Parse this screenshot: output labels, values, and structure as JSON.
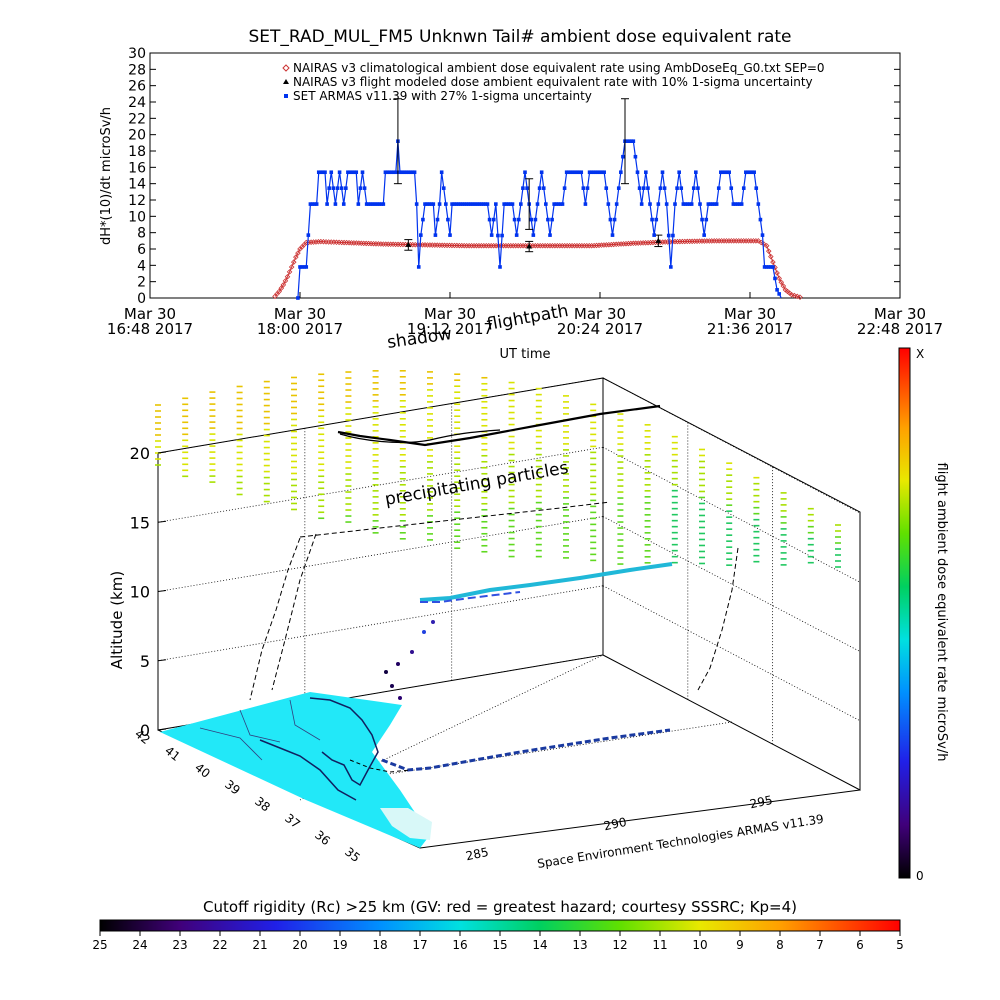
{
  "chart_data": [
    {
      "type": "line",
      "title": "SET_RAD_MUL_FM5 Unknwn Tail#  ambient dose equivalent rate",
      "ylabel": "dH*(10)/dt microSv/h",
      "xlabel": "UT time",
      "ylim": [
        0,
        30
      ],
      "yticks": [
        0,
        2,
        4,
        6,
        8,
        10,
        12,
        14,
        16,
        18,
        20,
        22,
        24,
        26,
        28,
        30
      ],
      "x_domain": [
        "2017-03-30 16:48",
        "2017-03-30 22:48"
      ],
      "xticks": [
        {
          "line1": "Mar 30",
          "line2": "16:48 2017"
        },
        {
          "line1": "Mar 30",
          "line2": "18:00 2017"
        },
        {
          "line1": "Mar 30",
          "line2": "19:12 2017"
        },
        {
          "line1": "Mar 30",
          "line2": "20:24 2017"
        },
        {
          "line1": "Mar 30",
          "line2": "21:36 2017"
        },
        {
          "line1": "Mar 30",
          "line2": "22:48 2017"
        }
      ],
      "legend_position": "top-right",
      "series": [
        {
          "name": "NAIRAS v3 climatological ambient dose equivalent rate using AmbDoseEq_G0.txt SEP=0",
          "color": "#cc3333",
          "marker": "diamond",
          "points": [
            [
              "2017-03-30 17:48",
              0.2
            ],
            [
              "2017-03-30 17:50",
              0.8
            ],
            [
              "2017-03-30 17:52",
              1.6
            ],
            [
              "2017-03-30 17:54",
              2.6
            ],
            [
              "2017-03-30 17:56",
              3.8
            ],
            [
              "2017-03-30 17:58",
              5.0
            ],
            [
              "2017-03-30 18:00",
              6.0
            ],
            [
              "2017-03-30 18:03",
              6.8
            ],
            [
              "2017-03-30 18:10",
              6.9
            ],
            [
              "2017-03-30 18:20",
              6.8
            ],
            [
              "2017-03-30 18:40",
              6.6
            ],
            [
              "2017-03-30 19:00",
              6.5
            ],
            [
              "2017-03-30 19:20",
              6.4
            ],
            [
              "2017-03-30 19:40",
              6.4
            ],
            [
              "2017-03-30 20:00",
              6.4
            ],
            [
              "2017-03-30 20:20",
              6.4
            ],
            [
              "2017-03-30 20:40",
              6.7
            ],
            [
              "2017-03-30 21:00",
              6.9
            ],
            [
              "2017-03-30 21:20",
              7.0
            ],
            [
              "2017-03-30 21:40",
              7.0
            ],
            [
              "2017-03-30 21:44",
              6.4
            ],
            [
              "2017-03-30 21:47",
              4.4
            ],
            [
              "2017-03-30 21:50",
              2.4
            ],
            [
              "2017-03-30 21:53",
              1.0
            ],
            [
              "2017-03-30 21:56",
              0.4
            ],
            [
              "2017-03-30 22:00",
              0.1
            ]
          ]
        },
        {
          "name": "NAIRAS v3 flight modeled dose ambient equivalent rate with 10% 1-sigma uncertainty",
          "color": "#000000",
          "marker": "triangle",
          "points": [
            [
              "2017-03-30 18:52",
              6.5
            ],
            [
              "2017-03-30 19:50",
              6.3
            ],
            [
              "2017-03-30 20:52",
              7.0
            ]
          ],
          "errors": [
            0.65,
            0.63,
            0.7
          ]
        },
        {
          "name": "SET ARMAS v11.39 with 27% 1-sigma uncertainty",
          "color": "#0033ee",
          "marker": "square",
          "points": [
            [
              "2017-03-30 17:59",
              0
            ],
            [
              "2017-03-30 18:00",
              3.8
            ],
            [
              "2017-03-30 18:03",
              3.8
            ],
            [
              "2017-03-30 18:04",
              7.7
            ],
            [
              "2017-03-30 18:05",
              11.5
            ],
            [
              "2017-03-30 18:08",
              11.5
            ],
            [
              "2017-03-30 18:09",
              15.4
            ],
            [
              "2017-03-30 18:12",
              15.4
            ],
            [
              "2017-03-30 18:13",
              11.5
            ],
            [
              "2017-03-30 18:15",
              15.4
            ],
            [
              "2017-03-30 18:17",
              11.5
            ],
            [
              "2017-03-30 18:19",
              15.4
            ],
            [
              "2017-03-30 18:21",
              11.5
            ],
            [
              "2017-03-30 18:23",
              15.4
            ],
            [
              "2017-03-30 18:27",
              15.4
            ],
            [
              "2017-03-30 18:28",
              11.5
            ],
            [
              "2017-03-30 18:30",
              15.4
            ],
            [
              "2017-03-30 18:32",
              11.5
            ],
            [
              "2017-03-30 18:40",
              11.5
            ],
            [
              "2017-03-30 18:41",
              15.4
            ],
            [
              "2017-03-30 18:46",
              15.4
            ],
            [
              "2017-03-30 18:47",
              19.2
            ],
            [
              "2017-03-30 18:48",
              15.4
            ],
            [
              "2017-03-30 18:55",
              15.4
            ],
            [
              "2017-03-30 18:56",
              11.5
            ],
            [
              "2017-03-30 18:57",
              3.8
            ],
            [
              "2017-03-30 18:58",
              7.7
            ],
            [
              "2017-03-30 19:00",
              11.5
            ],
            [
              "2017-03-30 19:04",
              11.5
            ],
            [
              "2017-03-30 19:05",
              7.7
            ],
            [
              "2017-03-30 19:07",
              11.5
            ],
            [
              "2017-03-30 19:08",
              15.4
            ],
            [
              "2017-03-30 19:10",
              11.5
            ],
            [
              "2017-03-30 19:12",
              7.7
            ],
            [
              "2017-03-30 19:13",
              11.5
            ],
            [
              "2017-03-30 19:30",
              11.5
            ],
            [
              "2017-03-30 19:32",
              7.7
            ],
            [
              "2017-03-30 19:34",
              11.5
            ],
            [
              "2017-03-30 19:36",
              3.8
            ],
            [
              "2017-03-30 19:38",
              11.5
            ],
            [
              "2017-03-30 19:42",
              11.5
            ],
            [
              "2017-03-30 19:44",
              7.7
            ],
            [
              "2017-03-30 19:46",
              11.5
            ],
            [
              "2017-03-30 19:48",
              15.4
            ],
            [
              "2017-03-30 19:50",
              11.5
            ],
            [
              "2017-03-30 19:52",
              7.7
            ],
            [
              "2017-03-30 19:54",
              11.5
            ],
            [
              "2017-03-30 19:56",
              15.4
            ],
            [
              "2017-03-30 19:58",
              11.5
            ],
            [
              "2017-03-30 20:00",
              7.7
            ],
            [
              "2017-03-30 20:02",
              11.5
            ],
            [
              "2017-03-30 20:06",
              11.5
            ],
            [
              "2017-03-30 20:08",
              15.4
            ],
            [
              "2017-03-30 20:15",
              15.4
            ],
            [
              "2017-03-30 20:17",
              11.5
            ],
            [
              "2017-03-30 20:19",
              15.4
            ],
            [
              "2017-03-30 20:26",
              15.4
            ],
            [
              "2017-03-30 20:28",
              11.5
            ],
            [
              "2017-03-30 20:30",
              7.7
            ],
            [
              "2017-03-30 20:32",
              11.5
            ],
            [
              "2017-03-30 20:34",
              15.4
            ],
            [
              "2017-03-30 20:36",
              19.2
            ],
            [
              "2017-03-30 20:40",
              19.2
            ],
            [
              "2017-03-30 20:42",
              15.4
            ],
            [
              "2017-03-30 20:44",
              11.5
            ],
            [
              "2017-03-30 20:46",
              15.4
            ],
            [
              "2017-03-30 20:48",
              11.5
            ],
            [
              "2017-03-30 20:50",
              7.7
            ],
            [
              "2017-03-30 20:52",
              11.5
            ],
            [
              "2017-03-30 20:54",
              15.4
            ],
            [
              "2017-03-30 20:56",
              11.5
            ],
            [
              "2017-03-30 20:58",
              3.8
            ],
            [
              "2017-03-30 21:00",
              11.5
            ],
            [
              "2017-03-30 21:02",
              15.4
            ],
            [
              "2017-03-30 21:04",
              11.5
            ],
            [
              "2017-03-30 21:08",
              11.5
            ],
            [
              "2017-03-30 21:10",
              15.4
            ],
            [
              "2017-03-30 21:12",
              11.5
            ],
            [
              "2017-03-30 21:14",
              7.7
            ],
            [
              "2017-03-30 21:16",
              11.5
            ],
            [
              "2017-03-30 21:20",
              11.5
            ],
            [
              "2017-03-30 21:22",
              15.4
            ],
            [
              "2017-03-30 21:26",
              15.4
            ],
            [
              "2017-03-30 21:28",
              11.5
            ],
            [
              "2017-03-30 21:32",
              11.5
            ],
            [
              "2017-03-30 21:34",
              15.4
            ],
            [
              "2017-03-30 21:38",
              15.4
            ],
            [
              "2017-03-30 21:40",
              11.5
            ],
            [
              "2017-03-30 21:42",
              7.7
            ],
            [
              "2017-03-30 21:43",
              3.8
            ],
            [
              "2017-03-30 21:47",
              3.8
            ],
            [
              "2017-03-30 21:49",
              1.0
            ],
            [
              "2017-03-30 21:51",
              0
            ]
          ],
          "error_bars": [
            {
              "t": "2017-03-30 18:47",
              "y": 19.2,
              "err": 5.2
            },
            {
              "t": "2017-03-30 19:50",
              "y": 11.5,
              "err": 3.1
            },
            {
              "t": "2017-03-30 20:36",
              "y": 19.2,
              "err": 5.2
            }
          ]
        }
      ]
    },
    {
      "type": "scatter",
      "subtype": "3d-flight-track",
      "zlabel": "Altitude (km)",
      "zticks": [
        0,
        5,
        10,
        15,
        20
      ],
      "latitude_ticks": [
        "42",
        "41",
        "40",
        "39",
        "38",
        "37",
        "36",
        "35"
      ],
      "longitude_ticks": [
        "285",
        "290",
        "295"
      ],
      "annotations": {
        "shadow": "shadow",
        "flightpath": "flightpath",
        "precipitating": "precipitating particles",
        "instrument": "Space Environment Technologies ARMAS v11.39"
      },
      "colorbar_right": {
        "label": "flight ambient dose equivalent rate microSv/h",
        "max_label": "X",
        "min_label": "0"
      }
    },
    {
      "type": "heatmap",
      "subtype": "colorbar",
      "title": "Cutoff rigidity (Rc) >25 km (GV: red = greatest hazard; courtesy SSSRC; Kp=4)",
      "ticks": [
        "25",
        "24",
        "23",
        "22",
        "21",
        "20",
        "19",
        "18",
        "17",
        "16",
        "15",
        "14",
        "13",
        "12",
        "11",
        "10",
        "9",
        "8",
        "7",
        "6",
        "5"
      ]
    }
  ]
}
